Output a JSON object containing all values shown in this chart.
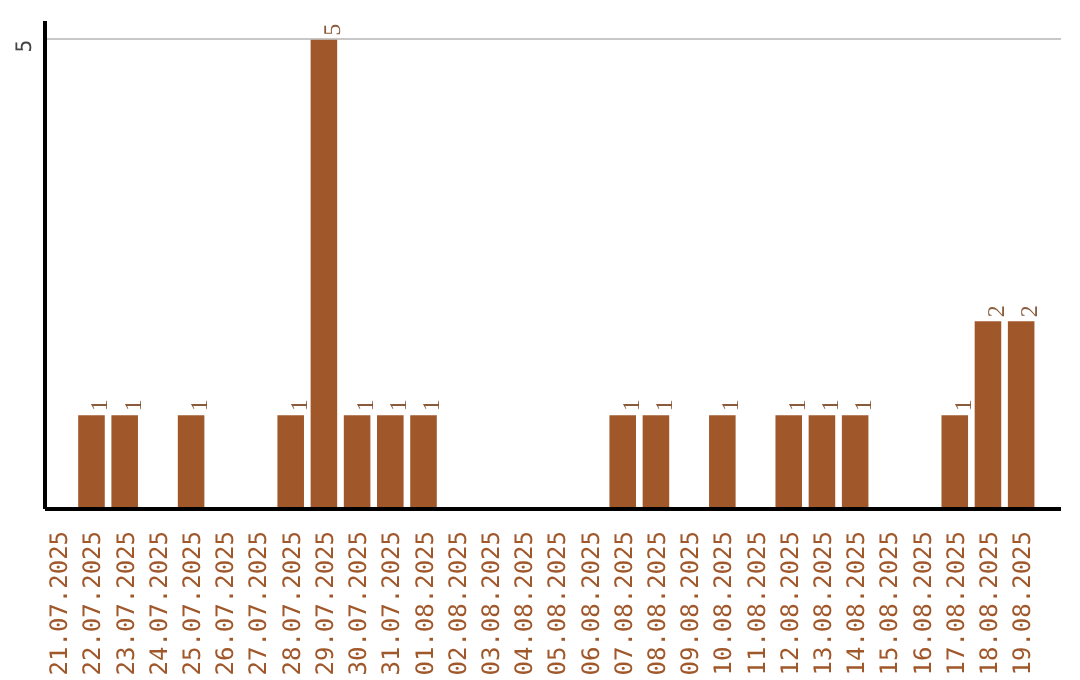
{
  "chart_data": {
    "type": "bar",
    "categories": [
      "21.07.2025",
      "22.07.2025",
      "23.07.2025",
      "24.07.2025",
      "25.07.2025",
      "26.07.2025",
      "27.07.2025",
      "28.07.2025",
      "29.07.2025",
      "30.07.2025",
      "31.07.2025",
      "01.08.2025",
      "02.08.2025",
      "03.08.2025",
      "04.08.2025",
      "05.08.2025",
      "06.08.2025",
      "07.08.2025",
      "08.08.2025",
      "09.08.2025",
      "10.08.2025",
      "11.08.2025",
      "12.08.2025",
      "13.08.2025",
      "14.08.2025",
      "15.08.2025",
      "16.08.2025",
      "17.08.2025",
      "18.08.2025",
      "19.08.2025"
    ],
    "values": [
      0,
      1,
      1,
      0,
      1,
      0,
      0,
      1,
      5,
      1,
      1,
      1,
      0,
      0,
      0,
      0,
      0,
      1,
      1,
      0,
      1,
      0,
      1,
      1,
      1,
      0,
      0,
      1,
      2,
      2
    ],
    "value_labels": [
      null,
      "1",
      "1",
      null,
      "1",
      null,
      null,
      "1",
      "5",
      "1",
      "1",
      "1",
      null,
      null,
      null,
      null,
      null,
      "1",
      "1",
      null,
      "1",
      null,
      "1",
      "1",
      "1",
      null,
      null,
      "1",
      "2",
      "2"
    ],
    "color": "#a0572a",
    "ylim": [
      0,
      5.2
    ],
    "yticks": [
      5
    ],
    "grid": "y"
  }
}
